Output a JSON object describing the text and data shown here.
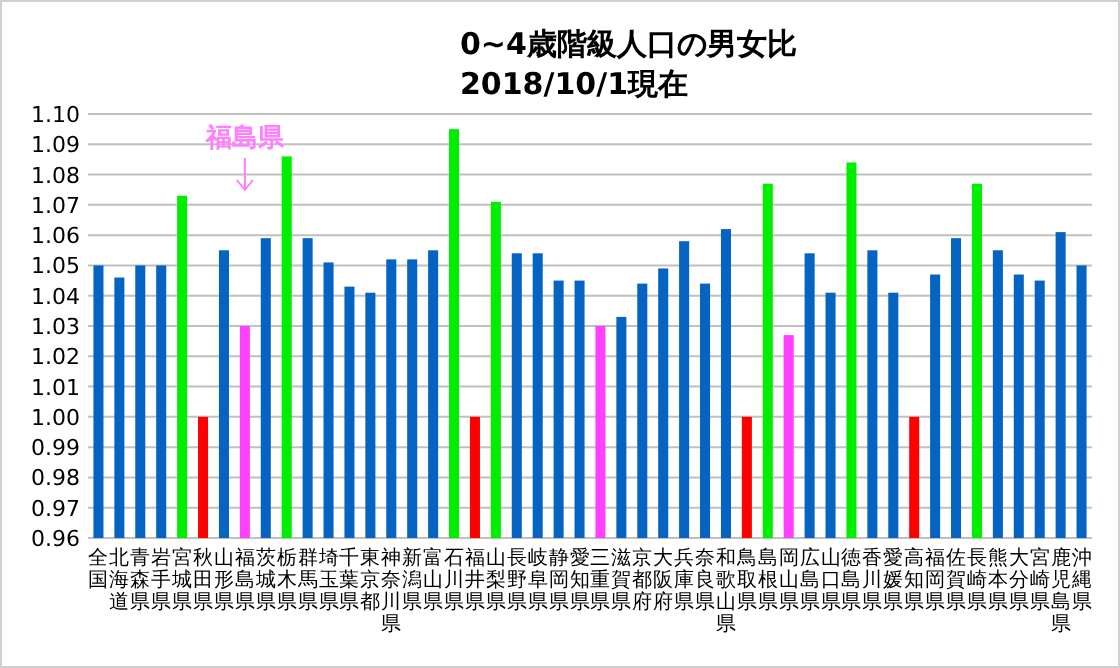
{
  "chart_data": {
    "type": "bar",
    "title": "0~4歳階級人口の男女比",
    "subtitle": "2018/10/1現在",
    "categories": [
      "全国",
      "北海道",
      "青森県",
      "岩手県",
      "宮城県",
      "秋田県",
      "山形県",
      "福島県",
      "茨城県",
      "栃木県",
      "群馬県",
      "埼玉県",
      "千葉県",
      "東京都",
      "神奈川県",
      "新潟県",
      "富山県",
      "石川県",
      "福井県",
      "山梨県",
      "長野県",
      "岐阜県",
      "静岡県",
      "愛知県",
      "三重県",
      "滋賀県",
      "京都府",
      "大阪府",
      "兵庫県",
      "奈良県",
      "和歌山県",
      "鳥取県",
      "島根県",
      "岡山県",
      "広島県",
      "山口県",
      "徳島県",
      "香川県",
      "愛媛県",
      "高知県",
      "福岡県",
      "佐賀県",
      "長崎県",
      "熊本県",
      "大分県",
      "宮崎県",
      "鹿児島県",
      "沖縄県"
    ],
    "values": [
      1.05,
      1.046,
      1.05,
      1.05,
      1.073,
      1.0,
      1.055,
      1.03,
      1.059,
      1.086,
      1.059,
      1.051,
      1.043,
      1.041,
      1.052,
      1.052,
      1.055,
      1.095,
      1.0,
      1.071,
      1.054,
      1.054,
      1.045,
      1.045,
      1.03,
      1.033,
      1.044,
      1.049,
      1.058,
      1.044,
      1.062,
      1.0,
      1.077,
      1.027,
      1.054,
      1.041,
      1.084,
      1.055,
      1.041,
      1.0,
      1.047,
      1.059,
      1.077,
      1.055,
      1.047,
      1.045,
      1.061,
      1.05
    ],
    "colors": [
      "#0563c1",
      "#0563c1",
      "#0563c1",
      "#0563c1",
      "#00ee00",
      "#ff0000",
      "#0563c1",
      "#ff40ff",
      "#0563c1",
      "#00ee00",
      "#0563c1",
      "#0563c1",
      "#0563c1",
      "#0563c1",
      "#0563c1",
      "#0563c1",
      "#0563c1",
      "#00ee00",
      "#ff0000",
      "#00ee00",
      "#0563c1",
      "#0563c1",
      "#0563c1",
      "#0563c1",
      "#ff40ff",
      "#0563c1",
      "#0563c1",
      "#0563c1",
      "#0563c1",
      "#0563c1",
      "#0563c1",
      "#ff0000",
      "#00ee00",
      "#ff40ff",
      "#0563c1",
      "#0563c1",
      "#00ee00",
      "#0563c1",
      "#0563c1",
      "#ff0000",
      "#0563c1",
      "#0563c1",
      "#00ee00",
      "#0563c1",
      "#0563c1",
      "#0563c1",
      "#0563c1",
      "#0563c1"
    ],
    "ylim": [
      0.96,
      1.1
    ],
    "yticks": [
      {
        "value": 0.96,
        "label": "0.96"
      },
      {
        "value": 0.97,
        "label": "0.97"
      },
      {
        "value": 0.98,
        "label": "0.98"
      },
      {
        "value": 0.99,
        "label": "0.99"
      },
      {
        "value": 1.0,
        "label": "1.00"
      },
      {
        "value": 1.01,
        "label": "1.01"
      },
      {
        "value": 1.02,
        "label": "1.02"
      },
      {
        "value": 1.03,
        "label": "1.03"
      },
      {
        "value": 1.04,
        "label": "1.04"
      },
      {
        "value": 1.05,
        "label": "1.05"
      },
      {
        "value": 1.06,
        "label": "1.06"
      },
      {
        "value": 1.07,
        "label": "1.07"
      },
      {
        "value": 1.08,
        "label": "1.08"
      },
      {
        "value": 1.09,
        "label": "1.09"
      },
      {
        "value": 1.1,
        "label": "1.10"
      }
    ],
    "grid": "y",
    "annotations": [
      "福島県"
    ]
  }
}
